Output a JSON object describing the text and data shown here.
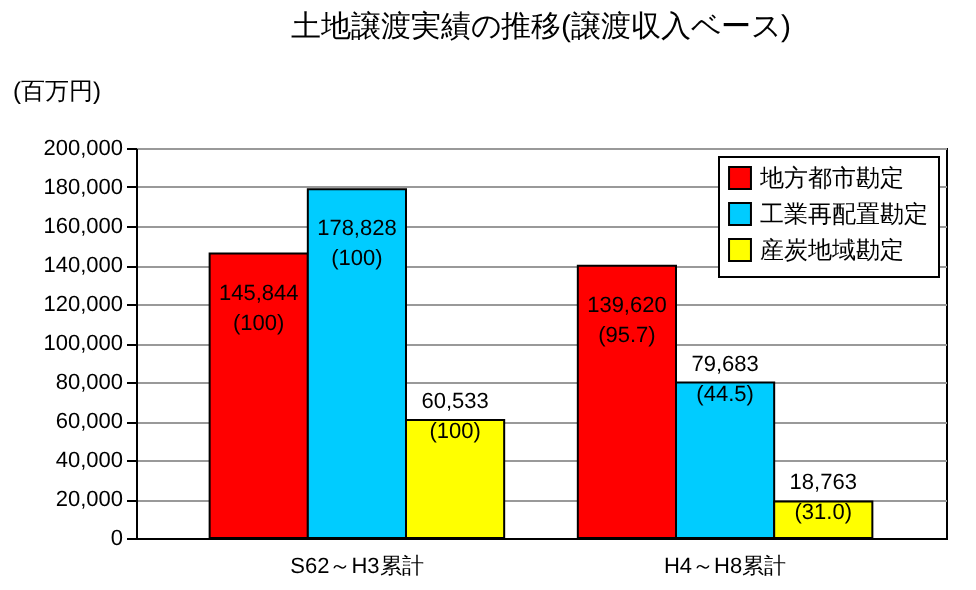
{
  "chart_data": {
    "type": "bar",
    "title": "土地譲渡実績の推移(譲渡収入ベース)",
    "ylabel": "(百万円)",
    "categories": [
      "S62～H3累計",
      "H4～H8累計"
    ],
    "series": [
      {
        "name": "地方都市勘定",
        "color": "#ff0000",
        "values": [
          145844,
          139620
        ],
        "value_labels": [
          "145,844\n(100)",
          "139,620\n(95.7)"
        ]
      },
      {
        "name": "工業再配置勘定",
        "color": "#00ccff",
        "values": [
          178828,
          79683
        ],
        "value_labels": [
          "178,828\n(100)",
          "79,683\n(44.5)"
        ]
      },
      {
        "name": "産炭地域勘定",
        "color": "#ffff00",
        "values": [
          60533,
          18763
        ],
        "value_labels": [
          "60,533\n(100)",
          "18,763\n(31.0)"
        ]
      }
    ],
    "ylim": [
      0,
      200000
    ],
    "yticks": [
      0,
      {
        "value": 20000,
        "label": "20,000"
      },
      {
        "value": 40000,
        "label": "40,000"
      },
      {
        "value": 60000,
        "label": "60,000"
      },
      {
        "value": 80000,
        "label": "80,000"
      },
      {
        "value": 100000,
        "label": "100,000"
      },
      {
        "value": 120000,
        "label": "120,000"
      },
      {
        "value": 140000,
        "label": "140,000"
      },
      {
        "value": 160000,
        "label": "160,000"
      },
      {
        "value": 180000,
        "label": "180,000"
      },
      {
        "value": 200000,
        "label": "200,000"
      }
    ],
    "grid": "y",
    "legend": "top right"
  }
}
